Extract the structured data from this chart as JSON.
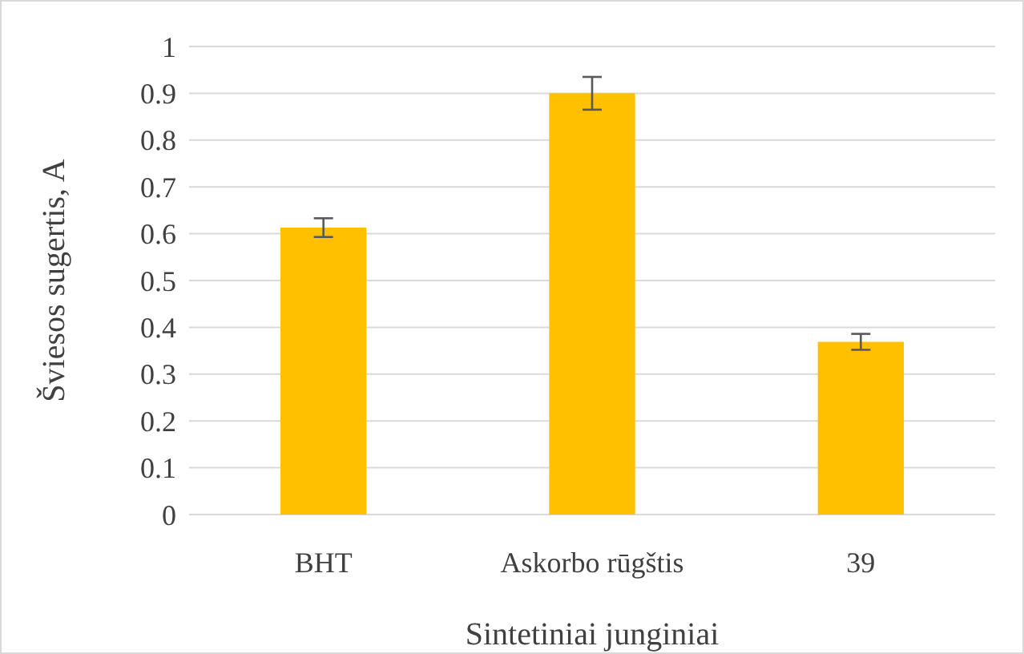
{
  "chart_data": {
    "type": "bar",
    "xlabel": "Sintetiniai junginiai",
    "ylabel": "Šviesos sugertis, A",
    "categories": [
      "BHT",
      "Askorbo rūgštis",
      "39"
    ],
    "values": [
      0.613,
      0.9,
      0.369
    ],
    "errors": [
      0.02,
      0.035,
      0.017
    ],
    "color": "#ffc000",
    "ylim": [
      0,
      1
    ],
    "yticks": [
      0,
      0.1,
      0.2,
      0.3,
      0.4,
      0.5,
      0.6,
      0.7,
      0.8,
      0.9,
      1
    ],
    "grid": "y"
  }
}
